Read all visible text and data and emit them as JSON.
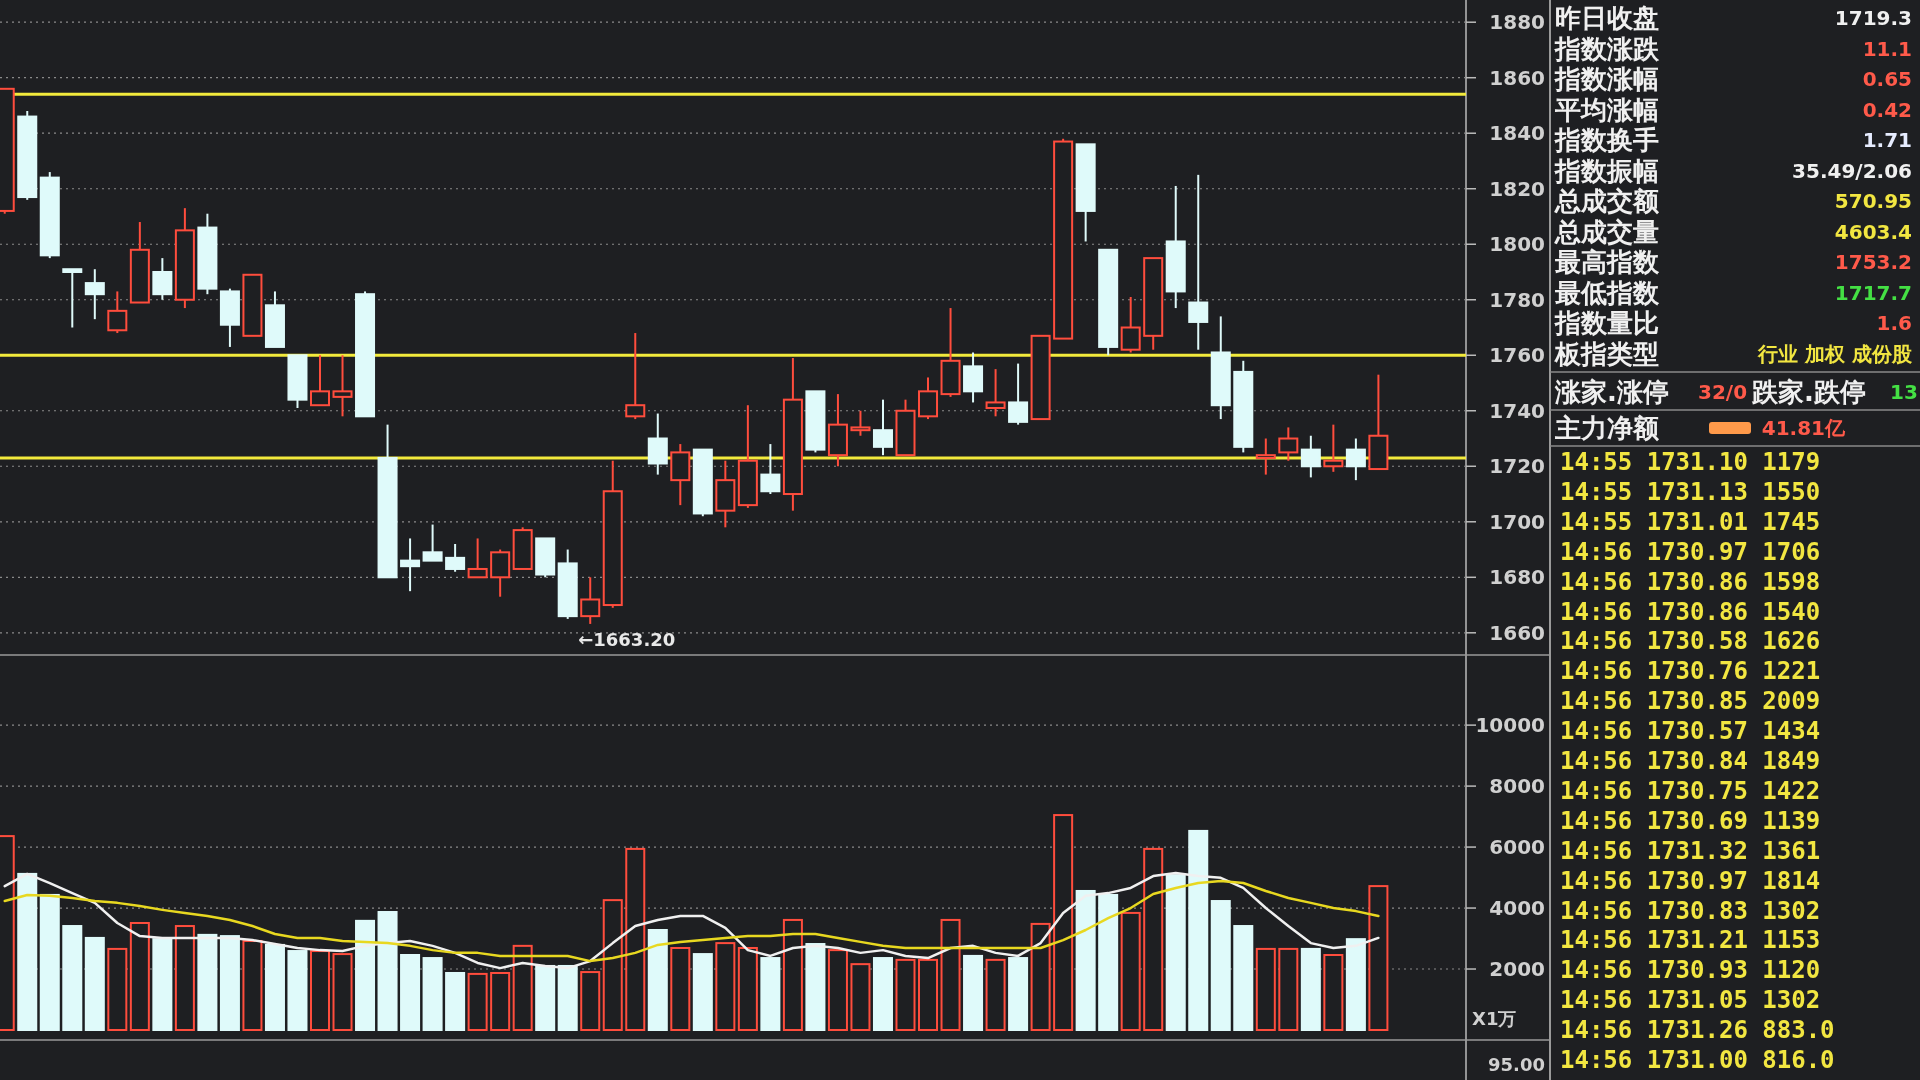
{
  "chart_data": [
    {
      "type": "candlestick",
      "categories": [
        null,
        null,
        null,
        null,
        null,
        null,
        null,
        null,
        null,
        null,
        null,
        null,
        null,
        null,
        null,
        null,
        null,
        null,
        null,
        null,
        null,
        null,
        null,
        null,
        null,
        null,
        null,
        null,
        null,
        null,
        null,
        null,
        null,
        null,
        null,
        null,
        null,
        null,
        null,
        null,
        null,
        null,
        null,
        null,
        null,
        null,
        null,
        null,
        null,
        null,
        null,
        null,
        null,
        null,
        null,
        null,
        null,
        null,
        null,
        null,
        null,
        null
      ],
      "ohlc": [
        [
          1812,
          1856,
          1811,
          1856
        ],
        [
          1846,
          1848,
          1816,
          1817
        ],
        [
          1824,
          1826,
          1795,
          1796
        ],
        [
          1791,
          1791,
          1770,
          1790
        ],
        [
          1786,
          1791,
          1773,
          1782
        ],
        [
          1769,
          1783,
          1768,
          1776
        ],
        [
          1779,
          1808,
          1779,
          1798
        ],
        [
          1790,
          1795,
          1780,
          1782
        ],
        [
          1780,
          1813,
          1777,
          1805
        ],
        [
          1806,
          1811,
          1782,
          1784
        ],
        [
          1783,
          1784,
          1763,
          1771
        ],
        [
          1767,
          1789,
          1767,
          1789
        ],
        [
          1778,
          1783,
          1763,
          1763
        ],
        [
          1760,
          1760,
          1741,
          1744
        ],
        [
          1742,
          1760,
          1742,
          1747
        ],
        [
          1745,
          1760,
          1738,
          1747
        ],
        [
          1782,
          1783,
          1738,
          1738
        ],
        [
          1723,
          1735,
          1680,
          1680
        ],
        [
          1686,
          1694,
          1675,
          1684
        ],
        [
          1689,
          1699,
          1686,
          1686
        ],
        [
          1687,
          1692,
          1682,
          1683
        ],
        [
          1680,
          1694,
          1680,
          1683
        ],
        [
          1680,
          1690,
          1673,
          1689
        ],
        [
          1683,
          1698,
          1683,
          1697
        ],
        [
          1694,
          1694,
          1680,
          1681
        ],
        [
          1685,
          1690,
          1665,
          1666
        ],
        [
          1666,
          1680,
          1663.2,
          1672
        ],
        [
          1670,
          1722,
          1669,
          1711
        ],
        [
          1738,
          1768,
          1737,
          1742
        ],
        [
          1730,
          1739,
          1717,
          1721
        ],
        [
          1715,
          1728,
          1706,
          1725
        ],
        [
          1726,
          1726,
          1702,
          1703
        ],
        [
          1704,
          1722,
          1698,
          1715
        ],
        [
          1706,
          1742,
          1705,
          1722
        ],
        [
          1717,
          1728,
          1710,
          1711
        ],
        [
          1710,
          1759,
          1704,
          1744
        ],
        [
          1747,
          1747,
          1725,
          1726
        ],
        [
          1724,
          1746,
          1720,
          1735
        ],
        [
          1733,
          1740,
          1731,
          1734
        ],
        [
          1733,
          1744,
          1724,
          1727
        ],
        [
          1724,
          1744,
          1724,
          1740
        ],
        [
          1738,
          1752,
          1737,
          1747
        ],
        [
          1746,
          1777,
          1745,
          1758
        ],
        [
          1756,
          1761,
          1743,
          1747
        ],
        [
          1741,
          1755,
          1738,
          1743
        ],
        [
          1743,
          1757,
          1735,
          1736
        ],
        [
          1737,
          1767,
          1737,
          1767
        ],
        [
          1766,
          1838,
          1766,
          1837
        ],
        [
          1836,
          1836,
          1801,
          1812
        ],
        [
          1798,
          1798,
          1760,
          1763
        ],
        [
          1762,
          1781,
          1761,
          1770
        ],
        [
          1767,
          1795,
          1762,
          1795
        ],
        [
          1801,
          1821,
          1777,
          1783
        ],
        [
          1779,
          1825,
          1762,
          1772
        ],
        [
          1761,
          1774,
          1737,
          1742
        ],
        [
          1754,
          1758,
          1725,
          1727
        ],
        [
          1723,
          1730,
          1717,
          1724
        ],
        [
          1725,
          1734,
          1722,
          1730
        ],
        [
          1726,
          1731,
          1716,
          1720
        ],
        [
          1720,
          1735,
          1718,
          1722
        ],
        [
          1726,
          1730,
          1715,
          1720
        ],
        [
          1719,
          1753,
          1719,
          1731
        ]
      ],
      "colors": [
        "#ff4d3d",
        "#dffafa",
        "#dffafa",
        "#dffafa",
        "#dffafa",
        "#ff4d3d",
        "#ff4d3d",
        "#dffafa",
        "#ff4d3d",
        "#dffafa",
        "#dffafa",
        "#ff4d3d",
        "#dffafa",
        "#dffafa",
        "#ff4d3d",
        "#ff4d3d",
        "#dffafa",
        "#dffafa",
        "#dffafa",
        "#dffafa",
        "#dffafa",
        "#ff4d3d",
        "#ff4d3d",
        "#ff4d3d",
        "#dffafa",
        "#dffafa",
        "#ff4d3d",
        "#ff4d3d",
        "#ff4d3d",
        "#dffafa",
        "#ff4d3d",
        "#dffafa",
        "#ff4d3d",
        "#ff4d3d",
        "#dffafa",
        "#ff4d3d",
        "#dffafa",
        "#ff4d3d",
        "#ff4d3d",
        "#dffafa",
        "#ff4d3d",
        "#ff4d3d",
        "#ff4d3d",
        "#dffafa",
        "#ff4d3d",
        "#dffafa",
        "#ff4d3d",
        "#ff4d3d",
        "#dffafa",
        "#dffafa",
        "#ff4d3d",
        "#ff4d3d",
        "#dffafa",
        "#dffafa",
        "#dffafa",
        "#dffafa",
        "#ff4d3d",
        "#ff4d3d",
        "#dffafa",
        "#ff4d3d",
        "#dffafa",
        "#ff4d3d"
      ],
      "ylim": [
        1652,
        1888
      ],
      "yticks": [
        1660,
        1680,
        1700,
        1720,
        1740,
        1760,
        1780,
        1800,
        1820,
        1840,
        1860,
        1880
      ],
      "grid": "y",
      "ref_lines": [
        {
          "axis": "y",
          "value": 1854,
          "color": "#f2ea3c"
        },
        {
          "axis": "y",
          "value": 1760,
          "color": "#f2ea3c"
        },
        {
          "axis": "y",
          "value": 1723,
          "color": "#f2ea3c"
        }
      ],
      "annotations": [
        "←1663.20"
      ]
    },
    {
      "type": "bar",
      "categories": [
        null,
        null,
        null,
        null,
        null,
        null,
        null,
        null,
        null,
        null,
        null,
        null,
        null,
        null,
        null,
        null,
        null,
        null,
        null,
        null,
        null,
        null,
        null,
        null,
        null,
        null,
        null,
        null,
        null,
        null,
        null,
        null,
        null,
        null,
        null,
        null,
        null,
        null,
        null,
        null,
        null,
        null,
        null,
        null,
        null,
        null,
        null,
        null,
        null,
        null,
        null,
        null,
        null,
        null,
        null,
        null,
        null,
        null,
        null,
        null,
        null,
        null
      ],
      "series": [
        {
          "type": "bar",
          "colors": [
            "#ff4d3d",
            "#dffafa",
            "#dffafa",
            "#dffafa",
            "#dffafa",
            "#ff4d3d",
            "#ff4d3d",
            "#dffafa",
            "#ff4d3d",
            "#dffafa",
            "#dffafa",
            "#ff4d3d",
            "#dffafa",
            "#dffafa",
            "#ff4d3d",
            "#ff4d3d",
            "#dffafa",
            "#dffafa",
            "#dffafa",
            "#dffafa",
            "#dffafa",
            "#ff4d3d",
            "#ff4d3d",
            "#ff4d3d",
            "#dffafa",
            "#dffafa",
            "#ff4d3d",
            "#ff4d3d",
            "#ff4d3d",
            "#dffafa",
            "#ff4d3d",
            "#dffafa",
            "#ff4d3d",
            "#ff4d3d",
            "#dffafa",
            "#ff4d3d",
            "#dffafa",
            "#ff4d3d",
            "#ff4d3d",
            "#dffafa",
            "#ff4d3d",
            "#ff4d3d",
            "#ff4d3d",
            "#dffafa",
            "#ff4d3d",
            "#dffafa",
            "#ff4d3d",
            "#ff4d3d",
            "#dffafa",
            "#dffafa",
            "#ff4d3d",
            "#ff4d3d",
            "#dffafa",
            "#dffafa",
            "#dffafa",
            "#dffafa",
            "#ff4d3d",
            "#ff4d3d",
            "#dffafa",
            "#ff4d3d",
            "#dffafa",
            "#ff4d3d"
          ],
          "values": [
            6360,
            5120,
            4430,
            3410,
            3020,
            2660,
            3510,
            2980,
            3410,
            3120,
            3080,
            2920,
            2790,
            2590,
            2590,
            2490,
            3580,
            3870,
            2460,
            2360,
            1870,
            1840,
            1870,
            2760,
            2100,
            2100,
            1900,
            4260,
            5940,
            3280,
            2690,
            2490,
            2850,
            2690,
            2360,
            3610,
            2820,
            2620,
            2160,
            2360,
            2300,
            2300,
            3610,
            2430,
            2300,
            2360,
            3480,
            7050,
            4560,
            4430,
            3840,
            5940,
            5080,
            6530,
            4230,
            3410,
            2660,
            2660,
            2660,
            2460,
            2980,
            4720
          ]
        },
        {
          "type": "line",
          "color": "#f0f0f0",
          "values": [
            4720,
            5120,
            4820,
            4490,
            4170,
            3510,
            3080,
            3020,
            3020,
            3020,
            3020,
            2950,
            2820,
            2690,
            2620,
            2590,
            2760,
            2850,
            2920,
            2760,
            2530,
            2200,
            2030,
            2200,
            2100,
            2030,
            2260,
            2850,
            3410,
            3610,
            3740,
            3740,
            3350,
            2620,
            2430,
            2690,
            2760,
            2690,
            2530,
            2620,
            2430,
            2360,
            2690,
            2760,
            2530,
            2430,
            2850,
            3840,
            4400,
            4490,
            4660,
            5050,
            5150,
            5050,
            4990,
            4660,
            4000,
            3410,
            2850,
            2690,
            2760,
            3020
          ]
        },
        {
          "type": "line",
          "color": "#e8d820",
          "values": [
            4230,
            4430,
            4400,
            4330,
            4230,
            4170,
            4070,
            3940,
            3840,
            3740,
            3610,
            3410,
            3150,
            3020,
            3020,
            2920,
            2890,
            2850,
            2760,
            2620,
            2530,
            2530,
            2430,
            2430,
            2430,
            2430,
            2260,
            2360,
            2530,
            2790,
            2890,
            2950,
            3020,
            3080,
            3080,
            3150,
            3150,
            3020,
            2890,
            2760,
            2690,
            2690,
            2690,
            2690,
            2690,
            2690,
            2690,
            2950,
            3280,
            3670,
            4000,
            4460,
            4660,
            4820,
            4890,
            4820,
            4560,
            4330,
            4170,
            4000,
            3900,
            3740
          ]
        }
      ],
      "ylim": [
        0,
        12300
      ],
      "yticks": [
        2000,
        4000,
        6000,
        8000,
        10000
      ],
      "grid": "y",
      "ylabel": "X1万",
      "annotations": [
        "95.00"
      ]
    },
    {
      "type": "other",
      "annotations": [
        "昨日收盘",
        "1719.3",
        "指数涨跌",
        "11.1",
        "指数涨幅",
        "0.65",
        "平均涨幅",
        "0.42",
        "指数换手",
        "1.71",
        "指数振幅",
        "35.49/2.06",
        "总成交额",
        "570.95",
        "总成交量",
        "4603.4",
        "最高指数",
        "1753.2",
        "最低指数",
        "1717.7",
        "指数量比",
        "1.6",
        "板指类型",
        "行业 加权 成份股",
        "涨家.涨停",
        "32/0",
        "跌家.跌停",
        "13",
        "主力净额",
        "41.81亿",
        "14:55 1731.10 1179",
        "14:55 1731.13 1550",
        "14:55 1731.01 1745",
        "14:56 1730.97 1706",
        "14:56 1730.86 1598",
        "14:56 1730.86 1540",
        "14:56 1730.58 1626",
        "14:56 1730.76 1221",
        "14:56 1730.85 2009",
        "14:56 1730.57 1434",
        "14:56 1730.84 1849",
        "14:56 1730.75 1422",
        "14:56 1730.69 1139",
        "14:56 1731.32 1361",
        "14:56 1730.97 1814",
        "14:56 1730.83 1302",
        "14:56 1731.21 1153",
        "14:56 1730.93 1120",
        "14:56 1731.05 1302",
        "14:56 1731.26 883.0",
        "14:56 1731.00 816.0"
      ]
    }
  ]
}
